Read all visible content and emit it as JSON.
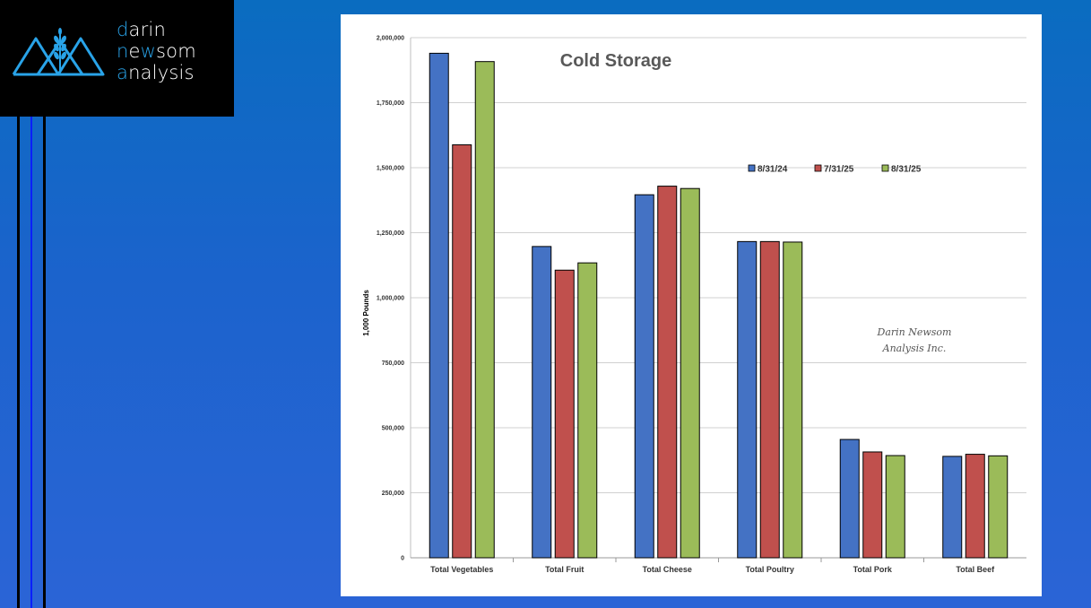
{
  "brand": {
    "line1": [
      "d",
      "arin"
    ],
    "line2": [
      "n",
      "e",
      "w",
      "som"
    ],
    "line3": [
      "a",
      "nalysis"
    ],
    "accent_color": "#29a3e8",
    "icon": "mountain-wheat-logo-icon"
  },
  "chart_data": {
    "type": "bar",
    "title": "Cold Storage",
    "xlabel": "",
    "ylabel": "1,000 Pounds",
    "ylim": [
      0,
      2000000
    ],
    "yticks": [
      0,
      250000,
      500000,
      750000,
      1000000,
      1250000,
      1500000,
      1750000,
      2000000
    ],
    "ytick_labels": [
      "0",
      "250,000",
      "500,000",
      "750,000",
      "1,000,000",
      "1,250,000",
      "1,500,000",
      "1,750,000",
      "2,000,000"
    ],
    "grid": true,
    "legend_position": "top-right",
    "categories": [
      "Total Vegetables",
      "Total Fruit",
      "Total Cheese",
      "Total Poultry",
      "Total Pork",
      "Total Beef"
    ],
    "series": [
      {
        "name": "8/31/24",
        "color": "#4472c4",
        "values": [
          1940000,
          1197000,
          1396000,
          1216000,
          455000,
          390000
        ]
      },
      {
        "name": "7/31/25",
        "color": "#c0504d",
        "values": [
          1588000,
          1106000,
          1429000,
          1216000,
          407000,
          398000
        ]
      },
      {
        "name": "8/31/25",
        "color": "#9bbb59",
        "values": [
          1908000,
          1134000,
          1420000,
          1214000,
          393000,
          392000
        ]
      }
    ],
    "watermark": [
      "Darin Newsom",
      "Analysis Inc."
    ]
  }
}
